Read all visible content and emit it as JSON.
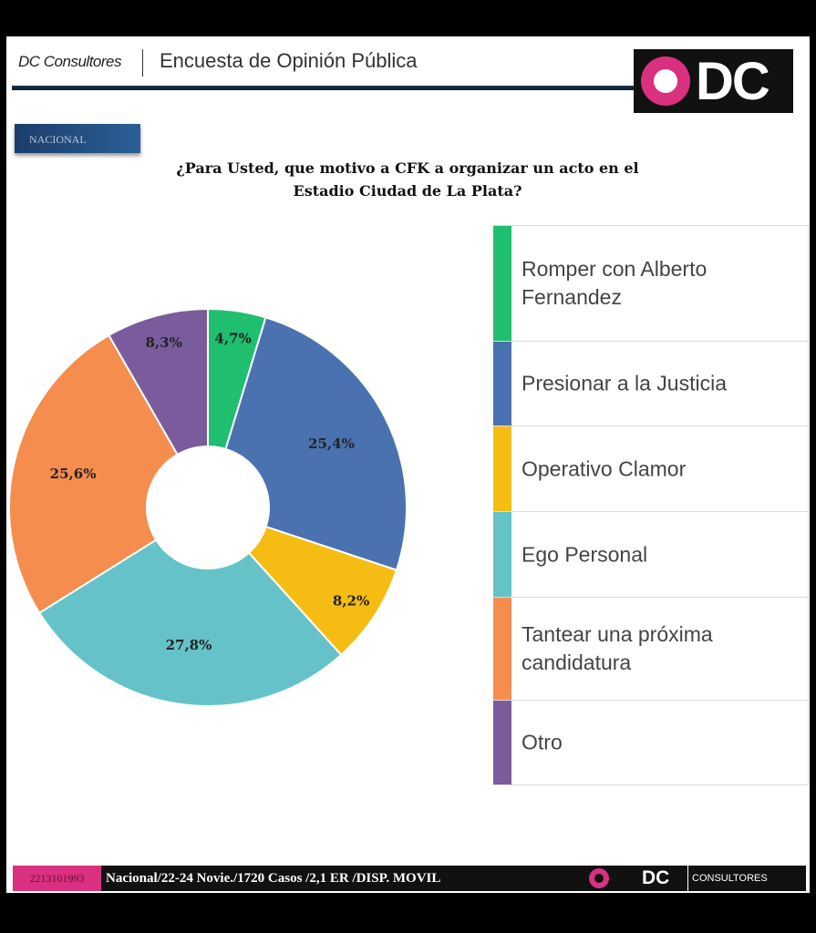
{
  "header": {
    "brand": "DC Consultores",
    "title": "Encuesta de Opinión Pública",
    "logo_text": "DC"
  },
  "tag": "NACIONAL",
  "chart_data": {
    "type": "pie",
    "donut": true,
    "title": "¿Para Usted, que motivo a CFK a organizar un acto en el Estadio Ciudad de La Plata?",
    "categories": [
      "Romper con Alberto Fernandez",
      "Presionar a la Justicia",
      "Operativo Clamor",
      "Ego Personal",
      "Tantear una próxima candidatura",
      "Otro"
    ],
    "values": [
      4.7,
      25.4,
      8.2,
      27.8,
      25.6,
      8.3
    ],
    "data_labels": [
      "4,7%",
      "25,4%",
      "8,2%",
      "27,8%",
      "25,6%",
      "8,3%"
    ],
    "colors": [
      "#1fbf6f",
      "#4a72b0",
      "#f5bd14",
      "#66c2c9",
      "#f58d4f",
      "#7a5c9c"
    ],
    "legend": "right"
  },
  "footer": {
    "code": "2213101993",
    "info": "Nacional/22-24 Novie./1720 Casos /2,1 ER /DISP. MOVIL",
    "logo_text": "DC",
    "logo_sub": "CONSULTORES"
  }
}
